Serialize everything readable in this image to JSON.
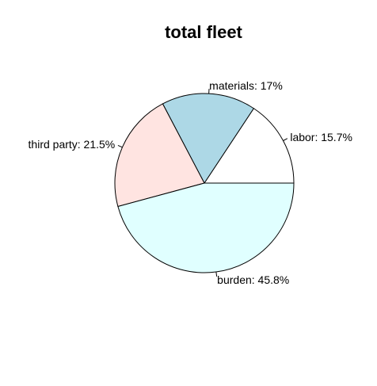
{
  "chart_data": {
    "type": "pie",
    "title": "total fleet",
    "slices": [
      {
        "label": "labor: 15.7%",
        "value": 15.7,
        "color": "#FFFFFF"
      },
      {
        "label": "materials: 17%",
        "value": 17.0,
        "color": "#ADD8E6"
      },
      {
        "label": "third party: 21.5%",
        "value": 21.5,
        "color": "#FFE4E1"
      },
      {
        "label": "burden: 45.8%",
        "value": 45.8,
        "color": "#E0FFFF"
      }
    ],
    "start": "3 o'clock",
    "direction": "counter-clockwise",
    "border_color": "#000000"
  }
}
